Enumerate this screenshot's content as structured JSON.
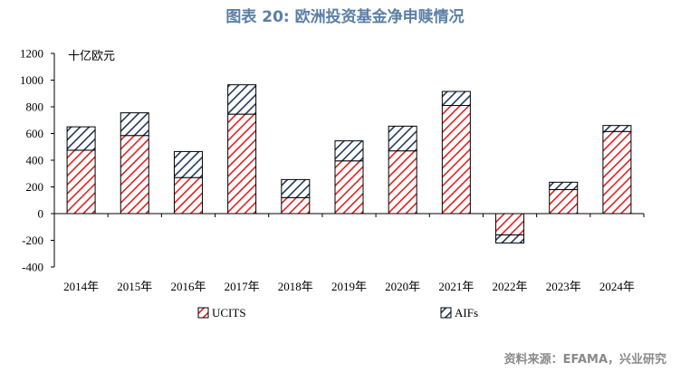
{
  "title": "图表 20: 欧洲投资基金净申赎情况",
  "source": "资料来源：EFAMA，兴业研究",
  "chart_data": {
    "type": "bar",
    "stacked": true,
    "unit_label": "十亿欧元",
    "categories": [
      "2014年",
      "2015年",
      "2016年",
      "2017年",
      "2018年",
      "2019年",
      "2020年",
      "2021年",
      "2022年",
      "2023年",
      "2024年"
    ],
    "series": [
      {
        "name": "UCITS",
        "color": "#e02020",
        "values": [
          475,
          585,
          270,
          745,
          120,
          395,
          470,
          810,
          -160,
          180,
          615
        ]
      },
      {
        "name": "AIFs",
        "color": "#1f3a5a",
        "values": [
          175,
          170,
          195,
          220,
          135,
          150,
          185,
          105,
          -60,
          55,
          45
        ]
      }
    ],
    "ylim": [
      -400,
      1200
    ],
    "yticks": [
      -400,
      -200,
      0,
      200,
      400,
      600,
      800,
      1000,
      1200
    ],
    "legend_position": "bottom",
    "grid": false
  }
}
